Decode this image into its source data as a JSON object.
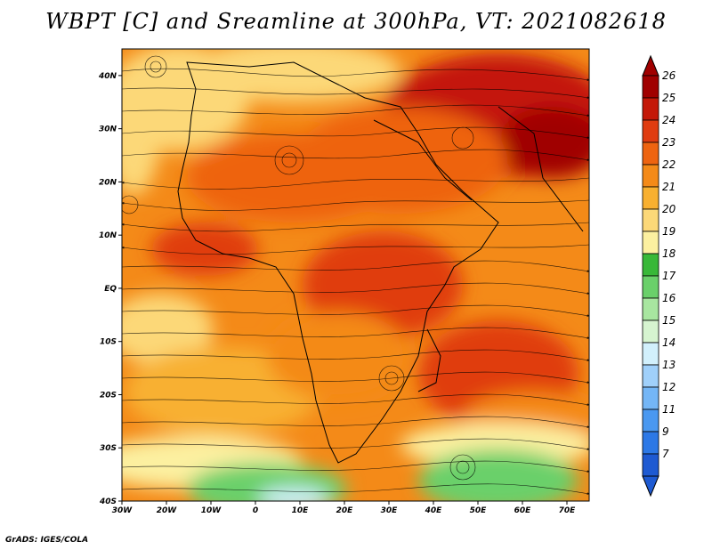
{
  "title": "WBPT [C] and Sreamline at 300hPa, VT: 2021082618",
  "credit": "GrADS: IGES/COLA",
  "lat_labels": [
    "40N",
    "30N",
    "20N",
    "10N",
    "EQ",
    "10S",
    "20S",
    "30S",
    "40S"
  ],
  "lon_labels": [
    "30W",
    "20W",
    "10W",
    "0",
    "10E",
    "20E",
    "30E",
    "40E",
    "50E",
    "60E",
    "70E"
  ],
  "colorbar": {
    "labels": [
      "7",
      "9",
      "11",
      "12",
      "13",
      "14",
      "15",
      "16",
      "17",
      "18",
      "19",
      "20",
      "21",
      "22",
      "23",
      "24",
      "25",
      "26"
    ],
    "colors": [
      "#1e5ad2",
      "#2c78e6",
      "#4a98f0",
      "#74b6f6",
      "#a0d0fa",
      "#d2f0fc",
      "#d6f4d0",
      "#a8e6a0",
      "#6ad06a",
      "#38b838",
      "#fcf0a0",
      "#fcd878",
      "#f8b030",
      "#f48a18",
      "#ee6410",
      "#e03c10",
      "#c41808",
      "#a00000"
    ]
  },
  "map_extent": {
    "lon_min": -30,
    "lon_max": 75,
    "lat_min": -40,
    "lat_max": 45
  }
}
